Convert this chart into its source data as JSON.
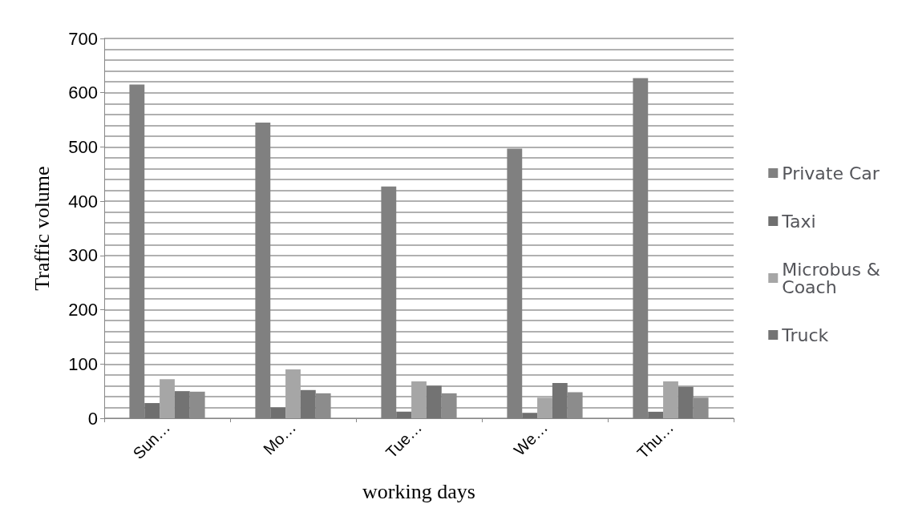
{
  "chart_data": {
    "type": "bar",
    "xlabel": "working days",
    "ylabel": "Traffic volume",
    "categories": [
      "Sun…",
      "Mo…",
      "Tue…",
      "We…",
      "Thu…"
    ],
    "series": [
      {
        "name": "Private Car",
        "color": "#808080",
        "values": [
          615,
          545,
          427,
          497,
          627
        ]
      },
      {
        "name": "Taxi",
        "color": "#6f6f6f",
        "values": [
          28,
          20,
          12,
          10,
          12
        ]
      },
      {
        "name": "Microbus & Coach",
        "color": "#a6a6a6",
        "values": [
          72,
          90,
          68,
          38,
          68
        ]
      },
      {
        "name": "Truck",
        "color": "#737373",
        "values": [
          50,
          52,
          60,
          65,
          58
        ]
      },
      {
        "color": "#8c8c8c",
        "values": [
          49,
          46,
          46,
          48,
          38
        ]
      }
    ],
    "ylim": [
      0,
      700
    ],
    "yticks": [
      0,
      100,
      200,
      300,
      400,
      500,
      600,
      700
    ],
    "grid": "y",
    "legend": "right"
  }
}
